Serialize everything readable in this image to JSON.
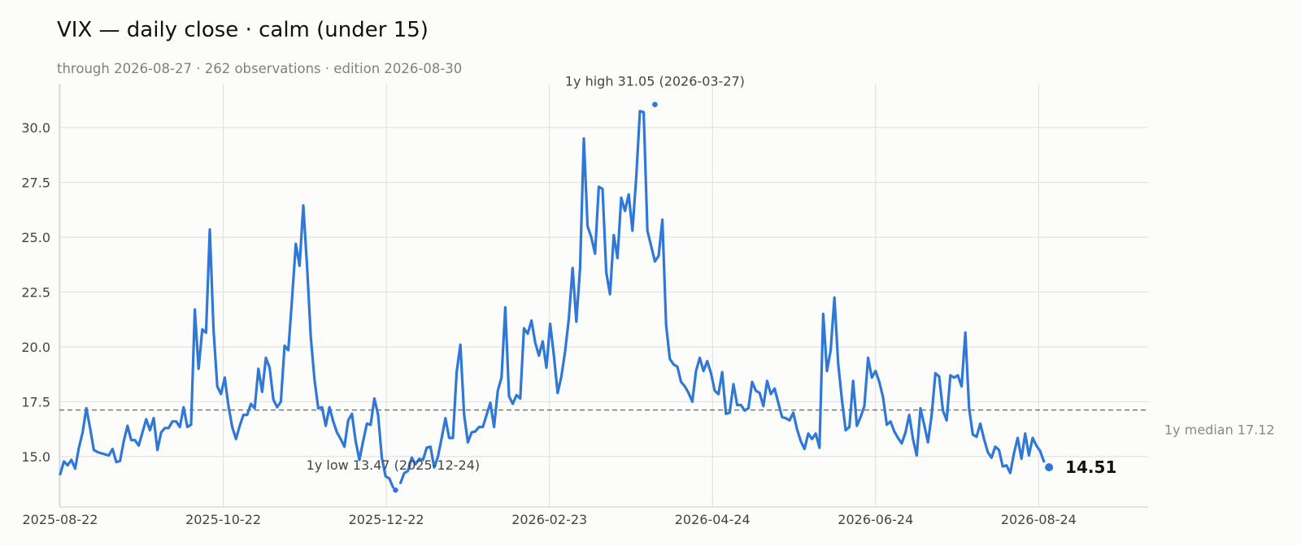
{
  "chart_data": {
    "type": "line",
    "title": "VIX — daily close · calm (under 15)",
    "subtitle": "through 2026-08-27 · 262 observations · edition 2026-08-30",
    "xlabel": "",
    "ylabel": "",
    "ylim": [
      12.7,
      32.0
    ],
    "grid": true,
    "y_ticks": [
      "15.0",
      "17.5",
      "20.0",
      "22.5",
      "25.0",
      "27.5",
      "30.0"
    ],
    "x_ticks": [
      "2025-08-22",
      "2025-10-22",
      "2025-12-22",
      "2026-02-23",
      "2026-04-24",
      "2026-06-24",
      "2026-08-24"
    ],
    "series": [
      {
        "color": "#2f78d6",
        "values": [
          14.2,
          14.78,
          14.6,
          14.85,
          14.45,
          15.4,
          16.1,
          17.2,
          16.3,
          15.3,
          15.2,
          15.15,
          15.1,
          15.05,
          15.35,
          14.75,
          14.8,
          15.7,
          16.4,
          15.75,
          15.75,
          15.5,
          16.1,
          16.7,
          16.2,
          16.75,
          15.3,
          16.1,
          16.3,
          16.3,
          16.6,
          16.6,
          16.35,
          17.25,
          16.35,
          16.45,
          21.7,
          19.0,
          20.8,
          20.65,
          25.35,
          20.8,
          18.2,
          17.85,
          18.6,
          17.3,
          16.35,
          15.8,
          16.4,
          16.9,
          16.9,
          17.4,
          17.2,
          19.0,
          17.95,
          19.5,
          19.05,
          17.6,
          17.25,
          17.5,
          20.05,
          19.85,
          22.2,
          24.7,
          23.7,
          26.45,
          23.7,
          20.45,
          18.5,
          17.2,
          17.25,
          16.4,
          17.25,
          16.6,
          16.1,
          15.8,
          15.45,
          16.65,
          16.95,
          15.7,
          14.85,
          15.7,
          16.5,
          16.45,
          17.65,
          16.9,
          14.95,
          14.1,
          14.0,
          13.6,
          null,
          13.8,
          14.25,
          14.35,
          14.95,
          14.65,
          14.9,
          14.85,
          15.4,
          15.45,
          14.5,
          15.0,
          15.85,
          16.75,
          15.85,
          15.85,
          18.85,
          20.1,
          16.9,
          15.65,
          16.1,
          16.15,
          16.35,
          16.35,
          16.9,
          17.45,
          16.35,
          18.0,
          18.6,
          21.8,
          17.75,
          17.4,
          17.8,
          17.65,
          20.85,
          20.6,
          21.2,
          20.2,
          19.6,
          20.25,
          19.05,
          21.05,
          19.6,
          17.9,
          18.65,
          19.8,
          21.3,
          23.6,
          21.15,
          23.6,
          29.5,
          25.5,
          25.0,
          24.25,
          27.3,
          27.2,
          23.4,
          22.4,
          25.1,
          24.05,
          26.8,
          26.2,
          26.95,
          25.3,
          27.7,
          30.75,
          30.7,
          25.3,
          24.6,
          23.9,
          24.15,
          25.8,
          21.0,
          19.45,
          19.2,
          19.1,
          18.4,
          18.2,
          17.9,
          17.5,
          18.9,
          19.5,
          18.9,
          19.35,
          18.8,
          18.0,
          17.85,
          18.85,
          16.95,
          17.0,
          18.3,
          17.35,
          17.35,
          17.1,
          17.2,
          18.4,
          18.0,
          17.9,
          17.3,
          18.45,
          17.85,
          18.1,
          17.45,
          16.8,
          16.75,
          16.65,
          17.0,
          16.25,
          15.7,
          15.35,
          16.05,
          15.8,
          16.05,
          15.4,
          21.5,
          18.9,
          19.85,
          22.25,
          19.25,
          17.6,
          16.2,
          16.35,
          18.45,
          16.4,
          16.8,
          17.3,
          19.5,
          18.6,
          18.9,
          18.4,
          17.7,
          16.45,
          16.6,
          16.15,
          15.85,
          15.6,
          16.1,
          16.9,
          15.8,
          15.05,
          17.2,
          16.45,
          15.65,
          16.9,
          18.8,
          18.65,
          17.1,
          16.65,
          18.7,
          18.6,
          18.7,
          18.2,
          20.65,
          17.2,
          16.0,
          15.9,
          16.5,
          15.8,
          15.2,
          14.95,
          15.45,
          15.3,
          14.55,
          14.6,
          14.25,
          15.15,
          15.85,
          14.9,
          16.05,
          15.05,
          15.85,
          15.5,
          15.25,
          14.78
        ]
      }
    ],
    "last_value": 14.51,
    "last_value_label": "14.51",
    "median_value": 17.12,
    "median_label": "1y median 17.12",
    "annotations": {
      "high": {
        "value": 31.05,
        "index": 159,
        "label": "1y high 31.05 (2026-03-27)"
      },
      "low": {
        "value": 13.47,
        "index": 89,
        "label": "1y low 13.47 (2025-12-24)"
      }
    }
  }
}
